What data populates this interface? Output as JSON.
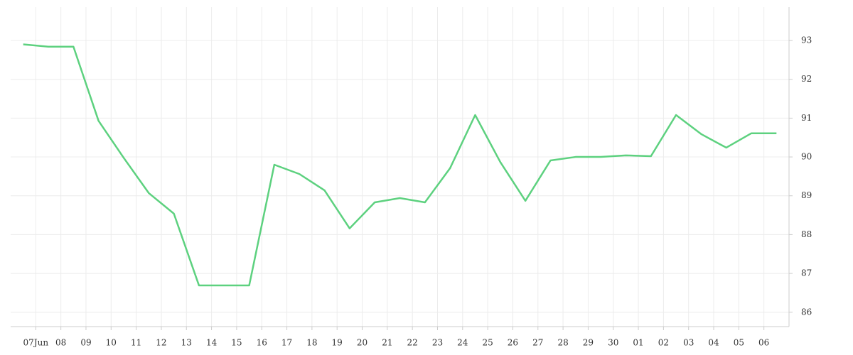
{
  "chart_data": {
    "type": "line",
    "x": [
      -0.5,
      0.5,
      1.5,
      2.5,
      3.5,
      4.5,
      5.5,
      6.5,
      7.5,
      8.5,
      9.5,
      10.5,
      11.5,
      12.5,
      13.5,
      14.5,
      15.5,
      16.5,
      17.5,
      18.5,
      19.5,
      20.5,
      21.5,
      22.5,
      23.5,
      24.5,
      25.5,
      26.5,
      27.5,
      28.5,
      29.5
    ],
    "series": [
      {
        "color": "#5dd17f",
        "values": [
          92.9,
          92.84,
          92.84,
          90.93,
          89.98,
          89.07,
          88.54,
          86.69,
          86.69,
          86.69,
          89.8,
          89.56,
          89.14,
          88.16,
          88.83,
          88.94,
          88.83,
          89.71,
          91.08,
          89.87,
          88.87,
          89.91,
          90.0,
          90.0,
          90.04,
          90.02,
          91.08,
          90.59,
          90.24,
          90.61,
          90.61
        ]
      }
    ],
    "xlim": [
      -1,
      30
    ],
    "xticks": [
      {
        "value": 0,
        "label": "07Jun"
      },
      {
        "value": 1,
        "label": "08"
      },
      {
        "value": 2,
        "label": "09"
      },
      {
        "value": 3,
        "label": "10"
      },
      {
        "value": 4,
        "label": "11"
      },
      {
        "value": 5,
        "label": "12"
      },
      {
        "value": 6,
        "label": "13"
      },
      {
        "value": 7,
        "label": "14"
      },
      {
        "value": 8,
        "label": "15"
      },
      {
        "value": 9,
        "label": "16"
      },
      {
        "value": 10,
        "label": "17"
      },
      {
        "value": 11,
        "label": "18"
      },
      {
        "value": 12,
        "label": "19"
      },
      {
        "value": 13,
        "label": "20"
      },
      {
        "value": 14,
        "label": "21"
      },
      {
        "value": 15,
        "label": "22"
      },
      {
        "value": 16,
        "label": "23"
      },
      {
        "value": 17,
        "label": "24"
      },
      {
        "value": 18,
        "label": "25"
      },
      {
        "value": 19,
        "label": "26"
      },
      {
        "value": 20,
        "label": "27"
      },
      {
        "value": 21,
        "label": "28"
      },
      {
        "value": 22,
        "label": "29"
      },
      {
        "value": 23,
        "label": "30"
      },
      {
        "value": 24,
        "label": "01"
      },
      {
        "value": 25,
        "label": "02"
      },
      {
        "value": 26,
        "label": "03"
      },
      {
        "value": 27,
        "label": "04"
      },
      {
        "value": 28,
        "label": "05"
      },
      {
        "value": 29,
        "label": "06"
      }
    ],
    "ylim": [
      85.63,
      93.86
    ],
    "yticks": [
      86,
      87,
      88,
      89,
      90,
      91,
      92,
      93
    ],
    "grid": true
  }
}
